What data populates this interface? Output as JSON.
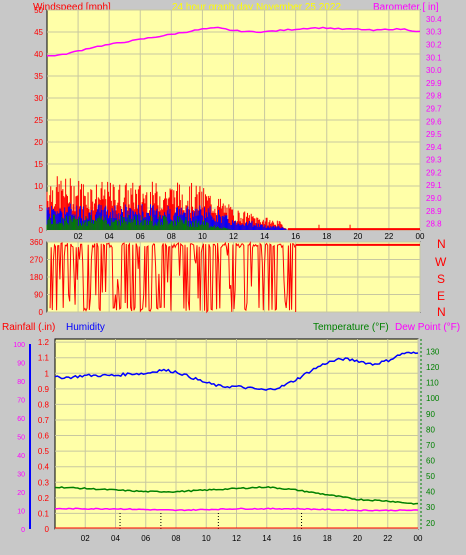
{
  "colors": {
    "background": "#c8c8c8",
    "plot_bg": "#ffffa8",
    "grid": "#c8c8a0",
    "wind_axis": "#ff0000",
    "baro_axis": "#ff00ff",
    "title": "#ffff00",
    "rain_axis": "#ff0000",
    "humidity_axis": "#0000ff",
    "temp_axis": "#008000",
    "dew_axis": "#ff00ff",
    "humidity_scale": "#ff00ff",
    "wind_dir": "#ff0000"
  },
  "header": {
    "wind_label": "Windspeed [mph]",
    "title": "24 hour graph day   November 25 2022",
    "baro_label": "Barometer [ in]"
  },
  "lower_header": {
    "rain_label": "Rainfall (.in)",
    "humidity_label": "Humidity",
    "temp_label": "Temperature (°F)",
    "dew_label": "Dew Point (°F)"
  },
  "compass_labels": [
    "N",
    "W",
    "S",
    "E",
    "N"
  ],
  "chart_data": [
    {
      "type": "line",
      "name": "wind-barometer",
      "x_ticks": [
        "02",
        "04",
        "06",
        "08",
        "10",
        "12",
        "14",
        "16",
        "18",
        "20",
        "22",
        "00"
      ],
      "left_axis": {
        "label": "Windspeed [mph]",
        "ticks": [
          0,
          5,
          10,
          15,
          20,
          25,
          30,
          35,
          40,
          45,
          50
        ],
        "range": [
          0,
          50
        ]
      },
      "right_axis": {
        "label": "Barometer [ in]",
        "ticks": [
          "28.8",
          "28.9",
          "29.0",
          "29.1",
          "29.2",
          "29.3",
          "29.4",
          "29.5",
          "29.6",
          "29.7",
          "29.8",
          "29.9",
          "30.0",
          "30.1",
          "30.2",
          "30.3",
          "30.4"
        ],
        "range": [
          28.75,
          30.47
        ]
      },
      "barometer": {
        "hours": [
          0,
          1,
          2,
          3,
          4,
          5,
          6,
          7,
          8,
          9,
          10,
          11,
          12,
          13,
          14,
          15,
          16,
          17,
          18,
          19,
          20,
          21,
          22,
          23,
          24
        ],
        "values": [
          30.11,
          30.12,
          30.15,
          30.18,
          30.2,
          30.22,
          30.24,
          30.26,
          30.28,
          30.3,
          30.32,
          30.33,
          30.31,
          30.3,
          30.3,
          30.31,
          30.32,
          30.33,
          30.33,
          30.32,
          30.32,
          30.31,
          30.32,
          30.32,
          30.3
        ]
      },
      "wind_gust_envelope": {
        "hours": [
          0,
          1,
          2,
          3,
          4,
          5,
          6,
          7,
          8,
          9,
          10,
          11,
          12,
          13,
          14,
          15,
          15.5,
          24
        ],
        "values": [
          13,
          12,
          12,
          11,
          11,
          11,
          11,
          11,
          11,
          11,
          10,
          8,
          5,
          4,
          3,
          2,
          0,
          0
        ]
      },
      "wind_avg_envelope": {
        "hours": [
          0,
          2,
          4,
          6,
          8,
          10,
          11,
          12,
          13,
          14,
          15,
          15.5,
          24
        ],
        "values": [
          6,
          5,
          5,
          5,
          5,
          5,
          4,
          2,
          2,
          1,
          1,
          0,
          0
        ]
      },
      "wind_min_envelope": {
        "hours": [
          0,
          2,
          4,
          6,
          8,
          10,
          11,
          12,
          13,
          15,
          24
        ],
        "values": [
          3,
          3,
          3,
          3,
          3,
          2,
          1,
          0,
          0,
          0,
          0
        ]
      }
    },
    {
      "type": "scatter",
      "name": "wind-direction",
      "y_ticks": [
        0,
        90,
        180,
        270,
        360
      ],
      "range": [
        0,
        360
      ],
      "last_value": 345,
      "direction_hours_end": 16
    },
    {
      "type": "line",
      "name": "humidity-temperature",
      "x_ticks": [
        "02",
        "04",
        "06",
        "08",
        "10",
        "12",
        "14",
        "16",
        "18",
        "20",
        "22",
        "00"
      ],
      "rain_axis": {
        "label": "Rainfall (.in)",
        "ticks": [
          "0",
          "0.1",
          "0.2",
          "0.3",
          "0.4",
          "0.5",
          "0.6",
          "0.7",
          "0.8",
          "0.9",
          "1",
          "1.1",
          "1.2"
        ],
        "range": [
          0,
          1.22
        ]
      },
      "humidity_axis": {
        "label": "Humidity",
        "ticks": [
          0,
          10,
          20,
          30,
          40,
          50,
          60,
          70,
          80,
          90,
          100
        ],
        "range": [
          0,
          100
        ]
      },
      "temp_axis": {
        "label": "Temperature (°F)",
        "ticks": [
          20,
          30,
          40,
          50,
          60,
          70,
          80,
          90,
          100,
          110,
          120,
          130
        ],
        "range": [
          16,
          138
        ]
      },
      "humidity": {
        "hours": [
          0,
          1,
          2,
          3,
          4,
          5,
          6,
          7,
          8,
          9,
          10,
          11,
          12,
          13,
          14,
          15,
          16,
          17,
          18,
          19,
          20,
          21,
          22,
          23,
          24
        ],
        "values": [
          82,
          82,
          83,
          83,
          83,
          84,
          84,
          86,
          85,
          82,
          79,
          77,
          77,
          76,
          75,
          77,
          81,
          86,
          90,
          92,
          91,
          89,
          91,
          95,
          95
        ]
      },
      "temperature": {
        "hours": [
          0,
          2,
          4,
          6,
          8,
          10,
          12,
          14,
          16,
          18,
          20,
          22,
          24
        ],
        "values": [
          43,
          42,
          41,
          40,
          40,
          41,
          42,
          43,
          41,
          38,
          35,
          34,
          32
        ]
      },
      "dew_point": {
        "hours": [
          0,
          4,
          8,
          12,
          16,
          20,
          24
        ],
        "values": [
          29,
          29,
          28,
          29,
          29,
          28,
          28
        ]
      },
      "rain_ticks_hours": [
        4.3,
        7,
        10.8,
        16.3
      ]
    }
  ]
}
